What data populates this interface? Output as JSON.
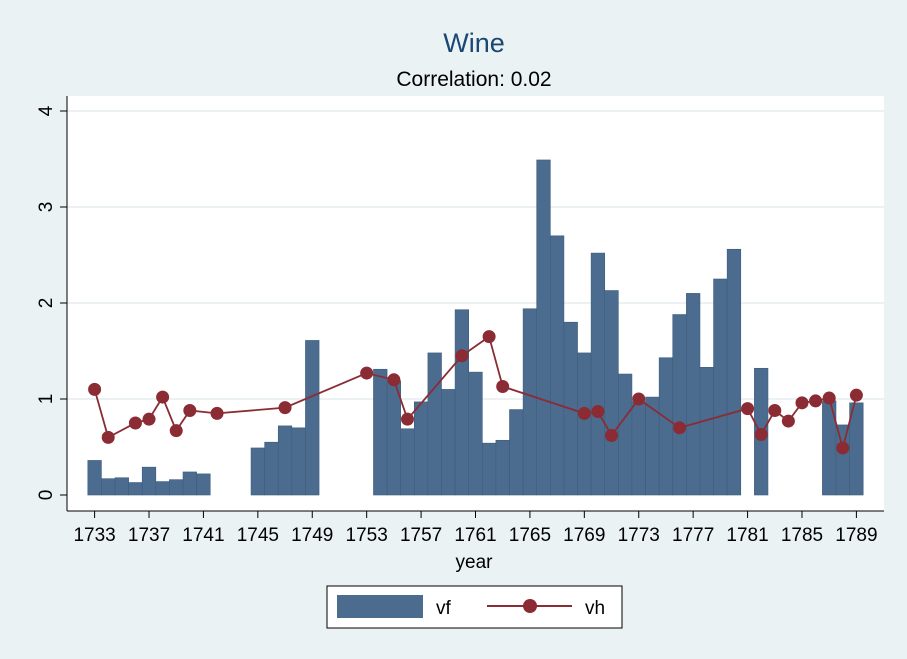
{
  "chart_data": {
    "type": "bar",
    "title": "Wine",
    "subtitle": "Correlation: 0.02",
    "xlabel": "year",
    "ylabel": "",
    "xlim": [
      1732,
      1790
    ],
    "ylim": [
      0,
      4
    ],
    "xticks": [
      1733,
      1737,
      1741,
      1745,
      1749,
      1753,
      1757,
      1761,
      1765,
      1769,
      1773,
      1777,
      1781,
      1785,
      1789
    ],
    "yticks": [
      0,
      1,
      2,
      3,
      4
    ],
    "grid": true,
    "legend_position": "bottom",
    "series": [
      {
        "name": "vf",
        "type": "bar",
        "color": "#4b6c8e",
        "points": [
          {
            "x": 1733,
            "y": 0.36
          },
          {
            "x": 1734,
            "y": 0.17
          },
          {
            "x": 1735,
            "y": 0.18
          },
          {
            "x": 1736,
            "y": 0.13
          },
          {
            "x": 1737,
            "y": 0.29
          },
          {
            "x": 1738,
            "y": 0.14
          },
          {
            "x": 1739,
            "y": 0.16
          },
          {
            "x": 1740,
            "y": 0.24
          },
          {
            "x": 1741,
            "y": 0.22
          },
          {
            "x": 1745,
            "y": 0.49
          },
          {
            "x": 1746,
            "y": 0.55
          },
          {
            "x": 1747,
            "y": 0.72
          },
          {
            "x": 1748,
            "y": 0.7
          },
          {
            "x": 1749,
            "y": 1.61
          },
          {
            "x": 1754,
            "y": 1.31
          },
          {
            "x": 1755,
            "y": 1.19
          },
          {
            "x": 1756,
            "y": 0.69
          },
          {
            "x": 1757,
            "y": 0.97
          },
          {
            "x": 1758,
            "y": 1.48
          },
          {
            "x": 1759,
            "y": 1.1
          },
          {
            "x": 1760,
            "y": 1.93
          },
          {
            "x": 1761,
            "y": 1.28
          },
          {
            "x": 1762,
            "y": 0.54
          },
          {
            "x": 1763,
            "y": 0.57
          },
          {
            "x": 1764,
            "y": 0.89
          },
          {
            "x": 1765,
            "y": 1.94
          },
          {
            "x": 1766,
            "y": 3.49
          },
          {
            "x": 1767,
            "y": 2.7
          },
          {
            "x": 1768,
            "y": 1.8
          },
          {
            "x": 1769,
            "y": 1.48
          },
          {
            "x": 1770,
            "y": 2.52
          },
          {
            "x": 1771,
            "y": 2.13
          },
          {
            "x": 1772,
            "y": 1.26
          },
          {
            "x": 1773,
            "y": 0.97
          },
          {
            "x": 1774,
            "y": 1.02
          },
          {
            "x": 1775,
            "y": 1.43
          },
          {
            "x": 1776,
            "y": 1.88
          },
          {
            "x": 1777,
            "y": 2.1
          },
          {
            "x": 1778,
            "y": 1.33
          },
          {
            "x": 1779,
            "y": 2.25
          },
          {
            "x": 1780,
            "y": 2.56
          },
          {
            "x": 1782,
            "y": 1.32
          },
          {
            "x": 1787,
            "y": 0.98
          },
          {
            "x": 1788,
            "y": 0.73
          },
          {
            "x": 1789,
            "y": 0.96
          }
        ]
      },
      {
        "name": "vh",
        "type": "line",
        "color": "#8b2c35",
        "points": [
          {
            "x": 1733,
            "y": 1.1
          },
          {
            "x": 1734,
            "y": 0.6
          },
          {
            "x": 1736,
            "y": 0.75
          },
          {
            "x": 1737,
            "y": 0.79
          },
          {
            "x": 1738,
            "y": 1.02
          },
          {
            "x": 1739,
            "y": 0.67
          },
          {
            "x": 1740,
            "y": 0.88
          },
          {
            "x": 1742,
            "y": 0.85
          },
          {
            "x": 1747,
            "y": 0.91
          },
          {
            "x": 1753,
            "y": 1.27
          },
          {
            "x": 1755,
            "y": 1.2
          },
          {
            "x": 1756,
            "y": 0.79
          },
          {
            "x": 1760,
            "y": 1.45
          },
          {
            "x": 1762,
            "y": 1.65
          },
          {
            "x": 1763,
            "y": 1.13
          },
          {
            "x": 1769,
            "y": 0.85
          },
          {
            "x": 1770,
            "y": 0.87
          },
          {
            "x": 1771,
            "y": 0.62
          },
          {
            "x": 1773,
            "y": 1.0
          },
          {
            "x": 1776,
            "y": 0.7
          },
          {
            "x": 1781,
            "y": 0.9
          },
          {
            "x": 1782,
            "y": 0.63
          },
          {
            "x": 1783,
            "y": 0.88
          },
          {
            "x": 1784,
            "y": 0.77
          },
          {
            "x": 1785,
            "y": 0.96
          },
          {
            "x": 1786,
            "y": 0.98
          },
          {
            "x": 1787,
            "y": 1.01
          },
          {
            "x": 1788,
            "y": 0.49
          },
          {
            "x": 1789,
            "y": 1.04
          }
        ]
      }
    ]
  }
}
